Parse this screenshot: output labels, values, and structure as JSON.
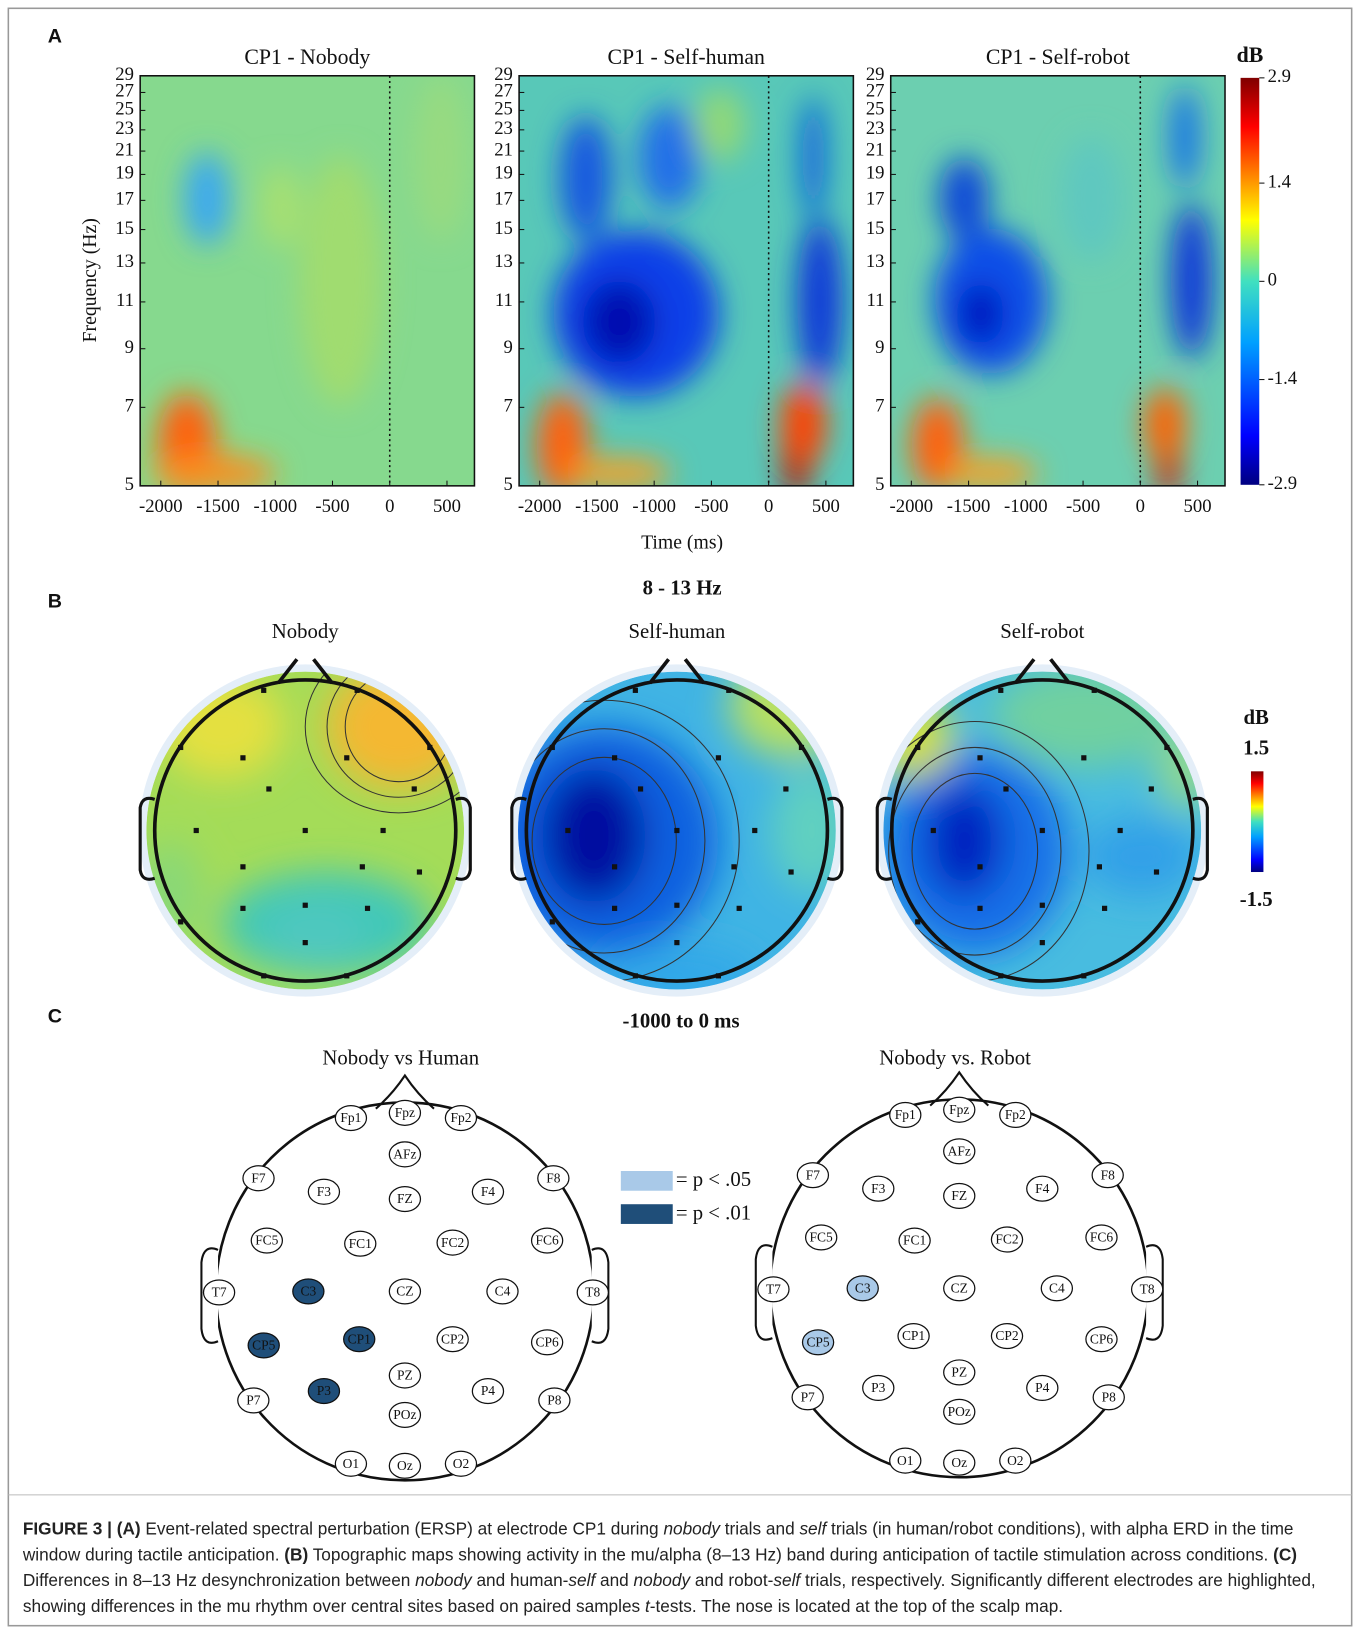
{
  "panel_a": {
    "label": "A",
    "titles": [
      "CP1 - Nobody",
      "CP1 - Self-human",
      "CP1 - Self-robot"
    ],
    "y_label": "Frequency (Hz)",
    "x_label": "Time (ms)",
    "freq_ticks": [
      5,
      7,
      9,
      11,
      13,
      15,
      17,
      19,
      21,
      23,
      25,
      27,
      29
    ],
    "freq_lim": [
      5,
      29
    ],
    "log_scale": true,
    "time_ticks": [
      -2000,
      -1500,
      -1000,
      -500,
      0,
      500
    ],
    "time_lim": [
      -2180,
      740
    ],
    "colorbar": {
      "title": "dB",
      "ticks": [
        2.9,
        1.4,
        0,
        -1.4,
        -2.9
      ],
      "lim": [
        -2.9,
        2.9
      ]
    }
  },
  "panel_b": {
    "label": "B",
    "band": "8 - 13 Hz",
    "titles": [
      "Nobody",
      "Self-human",
      "Self-robot"
    ],
    "colorbar": {
      "title": "dB",
      "ticks": [
        1.5,
        -1.5
      ],
      "lim": [
        -1.5,
        1.5
      ]
    }
  },
  "panel_c": {
    "label": "C",
    "window": "-1000 to 0 ms",
    "legend": [
      {
        "label": "= p < .05",
        "color": "#a9c9e8"
      },
      {
        "label": "= p < .01",
        "color": "#1f4e79"
      }
    ],
    "maps": [
      {
        "title": "Nobody vs Human",
        "electrodes": [
          {
            "name": "Fp1"
          },
          {
            "name": "Fpz"
          },
          {
            "name": "Fp2"
          },
          {
            "name": "AFz"
          },
          {
            "name": "F7"
          },
          {
            "name": "F3"
          },
          {
            "name": "FZ"
          },
          {
            "name": "F4"
          },
          {
            "name": "F8"
          },
          {
            "name": "FC5"
          },
          {
            "name": "FC1"
          },
          {
            "name": "FC2"
          },
          {
            "name": "FC6"
          },
          {
            "name": "T7"
          },
          {
            "name": "C3",
            "color": "#1f4e79"
          },
          {
            "name": "CZ"
          },
          {
            "name": "C4"
          },
          {
            "name": "T8"
          },
          {
            "name": "CP5",
            "color": "#1f4e79"
          },
          {
            "name": "CP1",
            "color": "#1f4e79"
          },
          {
            "name": "CP2"
          },
          {
            "name": "CP6"
          },
          {
            "name": "P7"
          },
          {
            "name": "P3",
            "color": "#1f4e79"
          },
          {
            "name": "PZ"
          },
          {
            "name": "P4"
          },
          {
            "name": "P8"
          },
          {
            "name": "POz"
          },
          {
            "name": "O1"
          },
          {
            "name": "Oz"
          },
          {
            "name": "O2"
          }
        ]
      },
      {
        "title": "Nobody vs. Robot",
        "electrodes": [
          {
            "name": "Fp1"
          },
          {
            "name": "Fpz"
          },
          {
            "name": "Fp2"
          },
          {
            "name": "AFz"
          },
          {
            "name": "F7"
          },
          {
            "name": "F3"
          },
          {
            "name": "FZ"
          },
          {
            "name": "F4"
          },
          {
            "name": "F8"
          },
          {
            "name": "FC5"
          },
          {
            "name": "FC1"
          },
          {
            "name": "FC2"
          },
          {
            "name": "FC6"
          },
          {
            "name": "T7"
          },
          {
            "name": "C3",
            "color": "#a9c9e8"
          },
          {
            "name": "CZ"
          },
          {
            "name": "C4"
          },
          {
            "name": "T8"
          },
          {
            "name": "CP5",
            "color": "#a9c9e8"
          },
          {
            "name": "CP1"
          },
          {
            "name": "CP2"
          },
          {
            "name": "CP6"
          },
          {
            "name": "P7"
          },
          {
            "name": "P3"
          },
          {
            "name": "PZ"
          },
          {
            "name": "P4"
          },
          {
            "name": "P8"
          },
          {
            "name": "POz"
          },
          {
            "name": "O1"
          },
          {
            "name": "Oz"
          },
          {
            "name": "O2"
          }
        ]
      }
    ]
  },
  "caption": [
    {
      "text": "FIGURE 3 | (A)",
      "bold": true
    },
    {
      "text": " Event-related spectral perturbation (ERSP) at electrode CP1 during "
    },
    {
      "text": "nobody",
      "italic": true
    },
    {
      "text": " trials and "
    },
    {
      "text": "self",
      "italic": true
    },
    {
      "text": " trials (in human/robot conditions), with alpha ERD in the time window during tactile anticipation. "
    },
    {
      "text": "(B)",
      "bold": true
    },
    {
      "text": " Topographic maps showing activity in the mu/alpha (8–13 Hz) band during anticipation of tactile stimulation across conditions. "
    },
    {
      "text": "(C)",
      "bold": true
    },
    {
      "text": " Differences in 8–13 Hz desynchronization between "
    },
    {
      "text": "nobody",
      "italic": true
    },
    {
      "text": " and human-"
    },
    {
      "text": "self",
      "italic": true
    },
    {
      "text": " and "
    },
    {
      "text": "nobody",
      "italic": true
    },
    {
      "text": " and robot-"
    },
    {
      "text": "self",
      "italic": true
    },
    {
      "text": " trials, respectively. Significantly different electrodes are highlighted, showing differences in the mu rhythm over central sites based on paired samples "
    },
    {
      "text": "t",
      "italic": true
    },
    {
      "text": "-tests. The nose is located at the top of the scalp map."
    }
  ]
}
